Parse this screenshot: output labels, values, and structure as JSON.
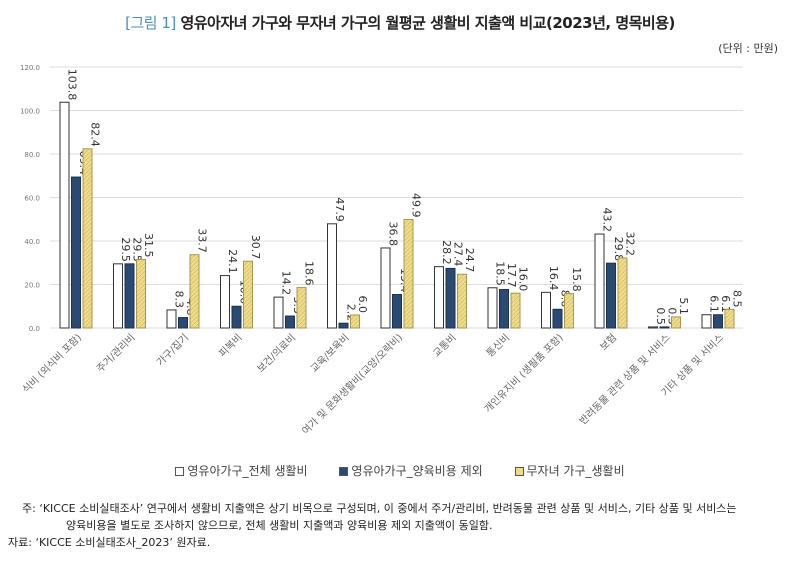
{
  "title_prefix": "[그림 1]",
  "title": "영유아자녀 가구와 무자녀 가구의 월평균 생활비 지출액 비교(2023년, 명목비용)",
  "unit": "(단위 : 만원)",
  "chart_data": {
    "type": "bar",
    "ylim": [
      0,
      120
    ],
    "yticks": [
      "0.0",
      "20.0",
      "40.0",
      "60.0",
      "80.0",
      "100.0",
      "120.0"
    ],
    "grid": true,
    "legend_position": "bottom",
    "categories": [
      "식비 (외식비 포함)",
      "주거/관리비",
      "가구/집기",
      "피복비",
      "보건/의료비",
      "교육/보육비",
      "여가 및 문화생활비(교양/오락비)",
      "교통비",
      "통신비",
      "개인유지비 (생필품 포함)",
      "보험",
      "반려동물 관련 상품 및 서비스",
      "기타 상품 및 서비스"
    ],
    "series": [
      {
        "name": "영유아가구_전체 생활비",
        "color": "#ffffff",
        "values": [
          103.8,
          29.5,
          8.3,
          24.1,
          14.2,
          47.9,
          36.8,
          28.2,
          18.5,
          16.4,
          43.2,
          0.5,
          6.1
        ]
      },
      {
        "name": "영유아가구_양육비용 제외",
        "color": "#2b4a73",
        "values": [
          69.4,
          29.5,
          4.8,
          10.0,
          5.5,
          2.2,
          15.4,
          27.4,
          17.7,
          8.6,
          29.8,
          0.5,
          6.1
        ]
      },
      {
        "name": "무자녀 가구_생활비",
        "color": "#eedc8a",
        "values": [
          82.4,
          31.5,
          33.7,
          30.7,
          18.6,
          6.0,
          49.9,
          24.7,
          16.0,
          15.8,
          32.2,
          5.1,
          8.5
        ]
      }
    ]
  },
  "notes": {
    "note_line1": "주: ‘KICCE 소비실태조사’ 연구에서 생활비 지출액은 상기 비목으로 구성되며, 이 중에서 주거/관리비, 반려동물 관련 상품 및 서비스, 기타 상품 및 서비스는",
    "note_line2": "양육비용을 별도로 조사하지 않으므로, 전체 생활비 지출액과 양육비용 제외 지출액이 동일함.",
    "source": "자료: ‘KICCE 소비실태조사_2023’ 원자료."
  }
}
